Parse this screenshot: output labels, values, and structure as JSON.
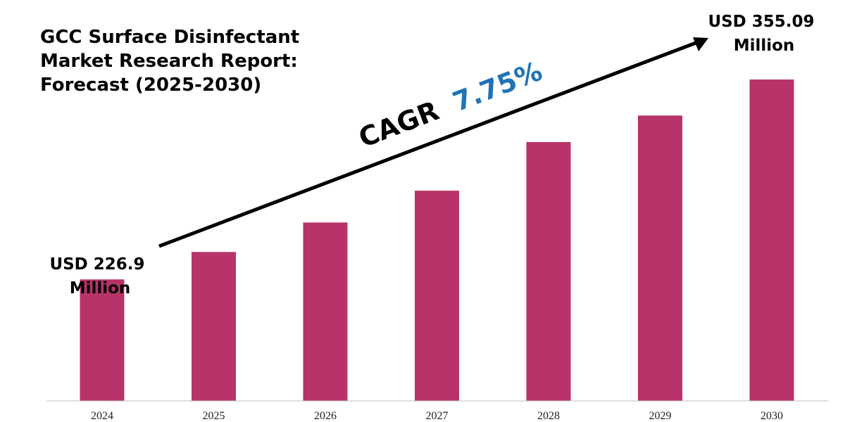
{
  "title_lines": [
    "GCC Surface Disinfectant",
    "Market Research Report:",
    "Forecast (2025-2030)"
  ],
  "cagr": {
    "prefix": "CAGR",
    "value": "7.75%"
  },
  "start_label": [
    "USD 226.9",
    "Million"
  ],
  "end_label": [
    "USD 355.09",
    "Million"
  ],
  "colors": {
    "bar": "#B8336A",
    "cagr_value": "#1F73B7",
    "arrow": "#000000",
    "axis": "#BFBFBF"
  },
  "chart_data": {
    "type": "bar",
    "categories": [
      "2024",
      "2025",
      "2026",
      "2027",
      "2028",
      "2029",
      "2030"
    ],
    "values": [
      226.9,
      244.5,
      263.4,
      283.8,
      315.0,
      332.0,
      355.09
    ],
    "ylim": [
      149,
      370
    ],
    "grid": false,
    "legend": "none"
  }
}
